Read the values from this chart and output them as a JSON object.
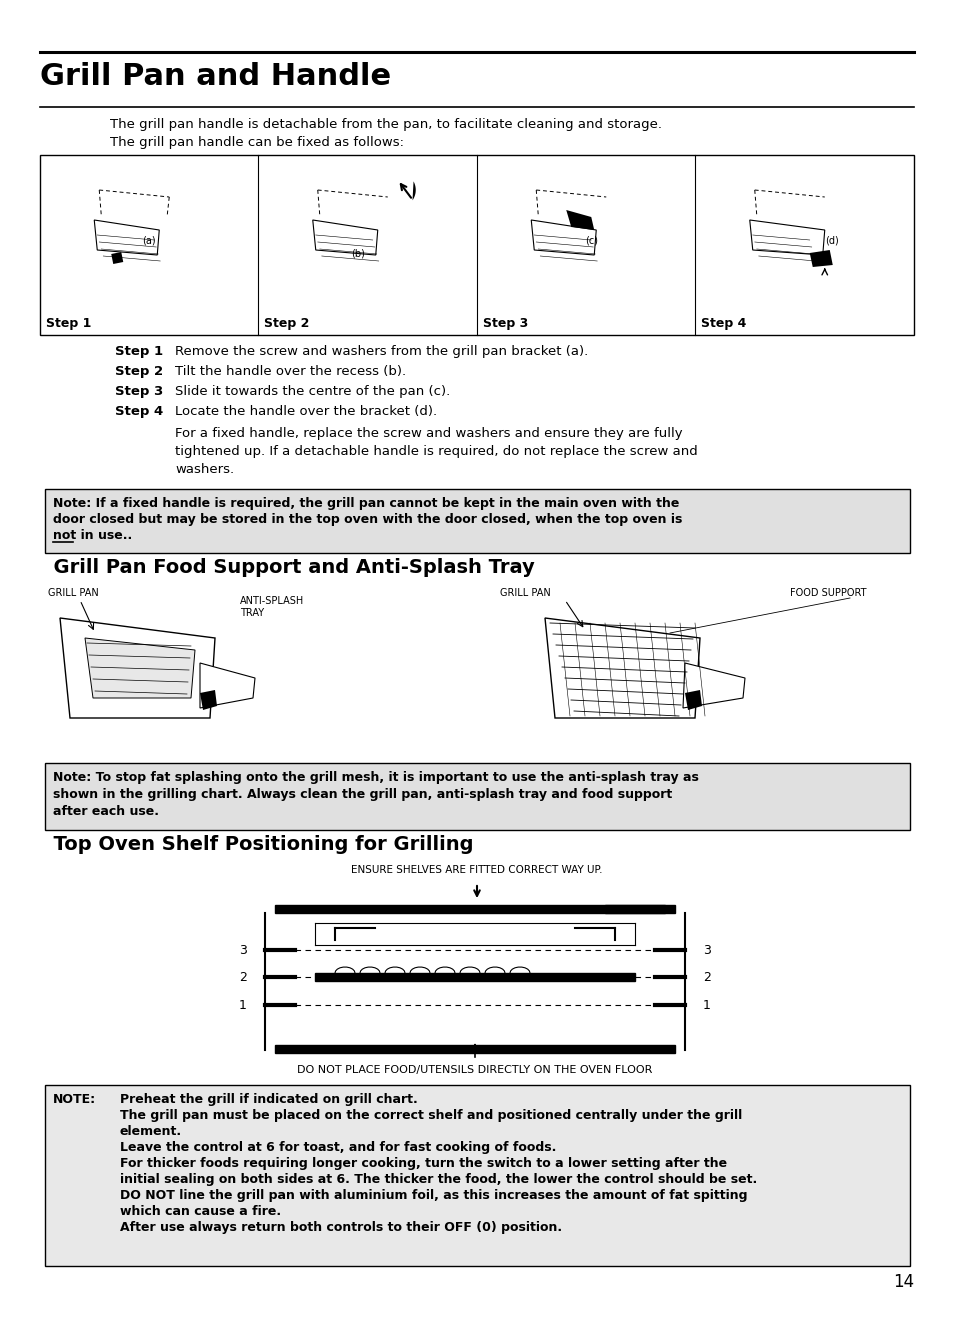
{
  "page_bg": "#ffffff",
  "title": "Grill Pan and Handle",
  "intro_text_1": "The grill pan handle is detachable from the pan, to facilitate cleaning and storage.",
  "intro_text_2": "The grill pan handle can be fixed as follows:",
  "step_labels": [
    "Step 1",
    "Step 2",
    "Step 3",
    "Step 4"
  ],
  "step_instructions": [
    [
      "Step 1",
      "Remove the screw and washers from the grill pan bracket (a)."
    ],
    [
      "Step 2",
      "Tilt the handle over the recess (b)."
    ],
    [
      "Step 3",
      "Slide it towards the centre of the pan (c)."
    ],
    [
      "Step 4",
      "Locate the handle over the bracket (d)."
    ]
  ],
  "step4_extra_lines": [
    "For a fixed handle, replace the screw and washers and ensure they are fully",
    "tightened up. If a detachable handle is required, do not replace the screw and",
    "washers."
  ],
  "note1_lines": [
    "Note: If a fixed handle is required, the grill pan cannot be kept in the main oven with the",
    "door closed but may be stored in the top oven with the door closed, when the top oven is",
    "not in use.."
  ],
  "section2_title": "  Grill Pan Food Support and Anti-Splash Tray",
  "label_grill_pan_l": "GRILL PAN",
  "label_anti_splash": "ANTI-SPLASH\nTRAY",
  "label_grill_pan_r": "GRILL PAN",
  "label_food_support": "FOOD SUPPORT",
  "note2_lines": [
    "Note: To stop fat splashing onto the grill mesh, it is important to use the anti-splash tray as",
    "shown in the grilling chart. Always clean the grill pan, anti-splash tray and food support",
    "after each use."
  ],
  "section3_title": "  Top Oven Shelf Positioning for Grilling",
  "ensure_text": "ENSURE SHELVES ARE FITTED CORRECT WAY UP.",
  "floor_text": "DO NOT PLACE FOOD/UTENSILS DIRECTLY ON THE OVEN FLOOR",
  "note3_label": "NOTE:",
  "note3_lines": [
    "Preheat the grill if indicated on grill chart.",
    "The grill pan must be placed on the correct shelf and positioned centrally under the grill",
    "element.",
    "Leave the control at 6 for toast, and for fast cooking of foods.",
    "For thicker foods requiring longer cooking, turn the switch to a lower setting after the",
    "initial sealing on both sides at 6. The thicker the food, the lower the control should be set.",
    "DO NOT line the grill pan with aluminium foil, as this increases the amount of fat spitting",
    "which can cause a fire.",
    "After use always return both controls to their OFF (0) position."
  ],
  "page_number": "14"
}
